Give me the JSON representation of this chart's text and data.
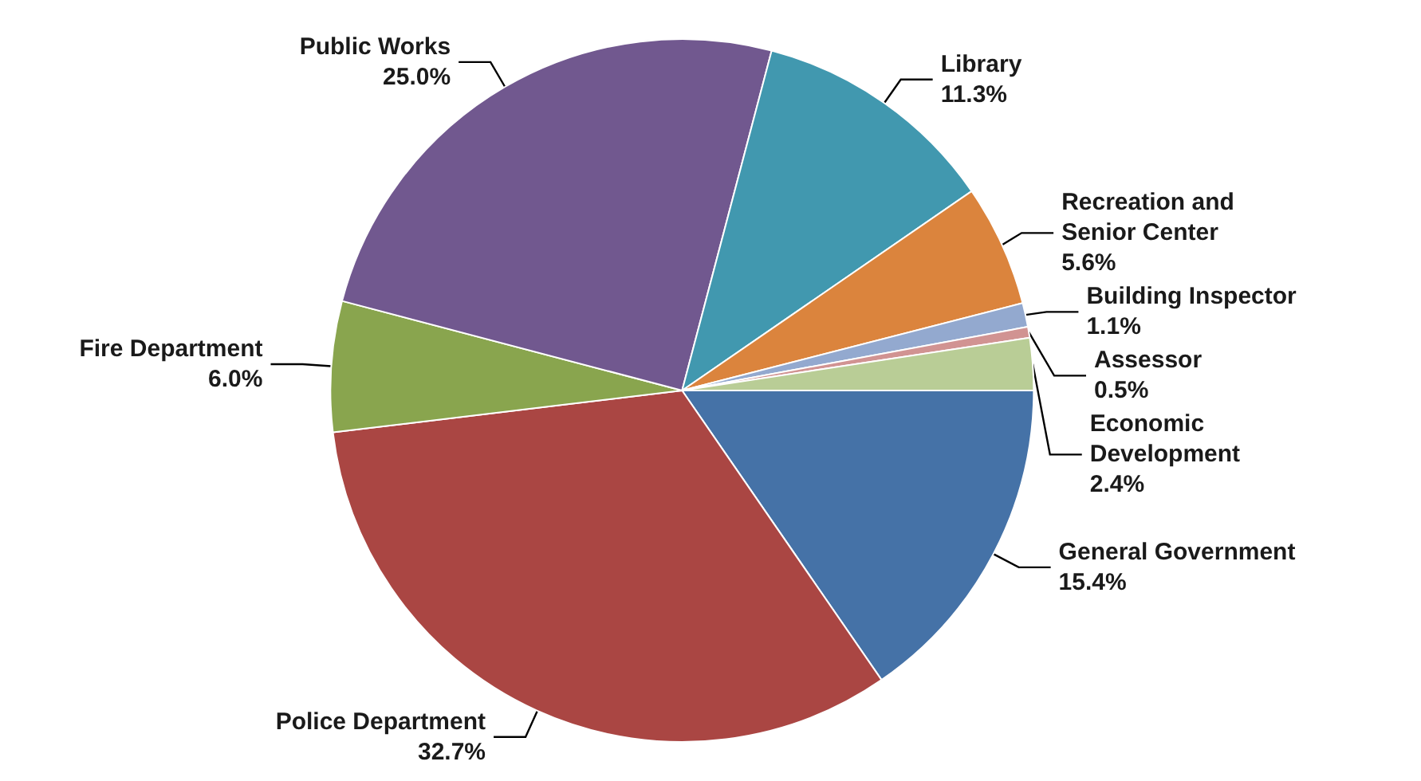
{
  "chart_data": {
    "type": "pie",
    "categories": [
      "General Government",
      "Police Department",
      "Fire Department",
      "Public Works",
      "Library",
      "Recreation and Senior Center",
      "Building Inspector",
      "Assessor",
      "Economic Development"
    ],
    "values": [
      15.4,
      32.7,
      6.0,
      25.0,
      11.3,
      5.6,
      1.1,
      0.5,
      2.4
    ],
    "value_labels": [
      "15.4%",
      "32.7%",
      "6.0%",
      "25.0%",
      "11.3%",
      "5.6%",
      "1.1%",
      "0.5%",
      "2.4%"
    ],
    "colors": [
      "#4572a7",
      "#aa4643",
      "#89a54e",
      "#71588f",
      "#4198af",
      "#db843d",
      "#93a9cf",
      "#d19392",
      "#b9cd96"
    ],
    "legend": false
  }
}
